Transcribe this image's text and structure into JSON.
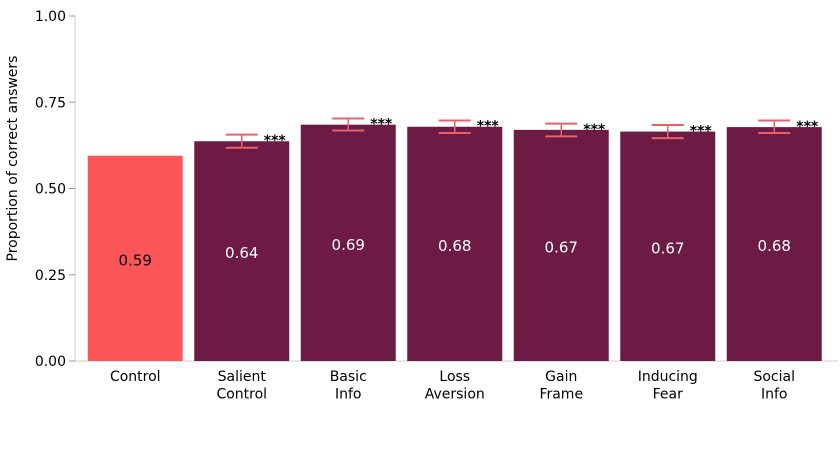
{
  "chart_data": {
    "type": "bar",
    "ylabel": "Proportion of correct answers",
    "xlabel": "",
    "ylim": [
      0,
      1
    ],
    "yticks": [
      "0.00",
      "0.25",
      "0.50",
      "0.75",
      "1.00"
    ],
    "ytick_values": [
      0,
      0.25,
      0.5,
      0.75,
      1.0
    ],
    "categories": [
      [
        "Control"
      ],
      [
        "Salient",
        "Control"
      ],
      [
        "Basic",
        "Info"
      ],
      [
        "Loss",
        "Aversion"
      ],
      [
        "Gain",
        "Frame"
      ],
      [
        "Inducing",
        "Fear"
      ],
      [
        "Social",
        "Info"
      ]
    ],
    "values": [
      0.595,
      0.637,
      0.685,
      0.679,
      0.67,
      0.665,
      0.678
    ],
    "value_labels": [
      "0.59",
      "0.64",
      "0.69",
      "0.68",
      "0.67",
      "0.67",
      "0.68"
    ],
    "error_low": [
      null,
      0.618,
      0.668,
      0.661,
      0.651,
      0.646,
      0.661
    ],
    "error_high": [
      null,
      0.656,
      0.703,
      0.697,
      0.688,
      0.684,
      0.697
    ],
    "significance": [
      "",
      "***",
      "***",
      "***",
      "***",
      "***",
      "***"
    ],
    "colors": {
      "control": "#fd5659",
      "treatment": "#6d1b45",
      "error_bar": "#e8606a",
      "control_label": "#000000",
      "treatment_label": "#ffffff",
      "axis": "#cccccc"
    },
    "grid": false,
    "legend": "none"
  }
}
